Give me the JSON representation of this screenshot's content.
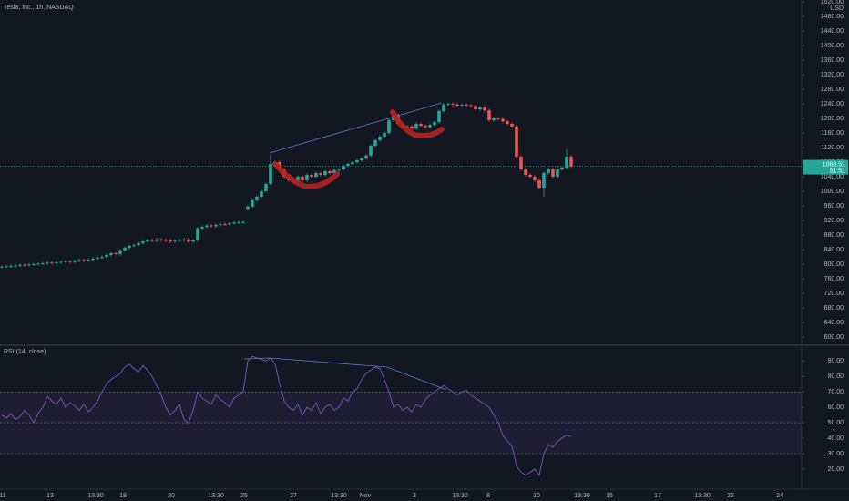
{
  "chart_data": [
    {
      "type": "candlestick",
      "title": "Tesla, Inc., 1h, NASDAQ",
      "currency": "USD",
      "up_color": "#26a69a",
      "down_color": "#ef5350",
      "open": [
        792,
        793,
        794,
        795,
        796,
        798,
        797,
        799,
        800,
        801,
        802,
        804,
        803,
        805,
        806,
        808,
        806,
        809,
        811,
        810,
        812,
        815,
        818,
        820,
        825,
        830,
        828,
        838,
        845,
        850,
        852,
        858,
        862,
        866,
        864,
        868,
        866,
        865,
        862,
        864,
        866,
        868,
        862,
        865,
        898,
        902,
        906,
        904,
        908,
        910,
        909,
        912,
        914,
        915,
        952,
        958,
        975,
        985,
        1000,
        1020,
        1075,
        1080,
        1060,
        1040,
        1030,
        1025,
        1040,
        1030,
        1045,
        1040,
        1050,
        1045,
        1055,
        1050,
        1058,
        1060,
        1070,
        1075,
        1080,
        1085,
        1090,
        1098,
        1125,
        1140,
        1150,
        1160,
        1195,
        1210,
        1185,
        1175,
        1178,
        1172,
        1185,
        1180,
        1176,
        1182,
        1190,
        1220,
        1238,
        1240,
        1238,
        1235,
        1237,
        1236,
        1234,
        1225,
        1230,
        1222,
        1195,
        1200,
        1198,
        1192,
        1185,
        1178,
        1095,
        1060,
        1045,
        1040,
        1030,
        1010,
        1050,
        1060,
        1040,
        1060,
        1065,
        1095
      ],
      "high": [
        797,
        798,
        799,
        800,
        802,
        802,
        803,
        804,
        805,
        806,
        808,
        808,
        809,
        810,
        812,
        812,
        813,
        815,
        815,
        816,
        819,
        822,
        824,
        829,
        834,
        834,
        842,
        849,
        854,
        856,
        862,
        866,
        870,
        870,
        872,
        872,
        870,
        869,
        868,
        870,
        872,
        872,
        869,
        902,
        906,
        910,
        910,
        912,
        914,
        914,
        916,
        918,
        919,
        919,
        962,
        979,
        989,
        1004,
        1024,
        1100,
        1084,
        1084,
        1064,
        1044,
        1034,
        1044,
        1044,
        1049,
        1049,
        1054,
        1054,
        1059,
        1059,
        1062,
        1064,
        1074,
        1079,
        1084,
        1089,
        1094,
        1102,
        1129,
        1144,
        1154,
        1164,
        1199,
        1214,
        1214,
        1189,
        1182,
        1182,
        1189,
        1189,
        1184,
        1186,
        1194,
        1224,
        1242,
        1244,
        1244,
        1242,
        1241,
        1241,
        1240,
        1238,
        1234,
        1234,
        1226,
        1204,
        1204,
        1202,
        1196,
        1189,
        1182,
        1099,
        1064,
        1049,
        1044,
        1034,
        1054,
        1064,
        1064,
        1064,
        1069,
        1115,
        1099
      ],
      "low": [
        788,
        789,
        790,
        791,
        792,
        793,
        793,
        795,
        796,
        797,
        798,
        799,
        799,
        801,
        802,
        802,
        802,
        805,
        806,
        806,
        808,
        811,
        814,
        816,
        821,
        824,
        824,
        834,
        841,
        846,
        848,
        854,
        858,
        860,
        860,
        862,
        861,
        858,
        858,
        860,
        862,
        858,
        858,
        861,
        894,
        898,
        900,
        900,
        904,
        905,
        905,
        908,
        910,
        911,
        948,
        954,
        971,
        981,
        996,
        1016,
        1071,
        1056,
        1036,
        1026,
        1021,
        1021,
        1026,
        1026,
        1036,
        1036,
        1041,
        1041,
        1046,
        1046,
        1054,
        1056,
        1066,
        1071,
        1076,
        1081,
        1086,
        1094,
        1121,
        1136,
        1146,
        1156,
        1191,
        1181,
        1171,
        1171,
        1168,
        1168,
        1176,
        1172,
        1172,
        1178,
        1186,
        1216,
        1234,
        1234,
        1231,
        1231,
        1232,
        1230,
        1221,
        1221,
        1218,
        1191,
        1191,
        1194,
        1188,
        1181,
        1174,
        1091,
        1056,
        1041,
        1036,
        1026,
        1006,
        985,
        1046,
        1036,
        1036,
        1056,
        1061,
        1064
      ],
      "close": [
        793,
        794,
        795,
        796,
        798,
        797,
        799,
        800,
        801,
        802,
        804,
        803,
        805,
        806,
        808,
        806,
        809,
        811,
        810,
        812,
        815,
        818,
        820,
        825,
        830,
        828,
        838,
        845,
        850,
        852,
        858,
        862,
        866,
        864,
        868,
        866,
        865,
        862,
        864,
        866,
        868,
        862,
        865,
        898,
        902,
        906,
        904,
        908,
        910,
        909,
        912,
        914,
        915,
        915,
        958,
        975,
        985,
        1000,
        1020,
        1075,
        1080,
        1060,
        1040,
        1030,
        1025,
        1040,
        1030,
        1045,
        1040,
        1050,
        1045,
        1055,
        1050,
        1058,
        1060,
        1070,
        1075,
        1080,
        1085,
        1090,
        1098,
        1125,
        1140,
        1150,
        1160,
        1195,
        1210,
        1185,
        1175,
        1178,
        1172,
        1185,
        1180,
        1176,
        1182,
        1190,
        1220,
        1238,
        1240,
        1238,
        1235,
        1237,
        1236,
        1234,
        1225,
        1230,
        1222,
        1195,
        1200,
        1198,
        1192,
        1185,
        1178,
        1095,
        1060,
        1045,
        1040,
        1030,
        1010,
        1050,
        1060,
        1040,
        1060,
        1065,
        1095,
        1068.51
      ],
      "last_price": 1068.51,
      "countdown": "51:51",
      "xlim": [
        0,
        176
      ],
      "ylim": [
        580,
        1525
      ],
      "yticks": [
        {
          "value": 600,
          "label": "600.00"
        },
        {
          "value": 640,
          "label": "640.00"
        },
        {
          "value": 680,
          "label": "680.00"
        },
        {
          "value": 720,
          "label": "720.00"
        },
        {
          "value": 760,
          "label": "760.00"
        },
        {
          "value": 800,
          "label": "800.00"
        },
        {
          "value": 840,
          "label": "840.00"
        },
        {
          "value": 880,
          "label": "880.00"
        },
        {
          "value": 920,
          "label": "920.00"
        },
        {
          "value": 960,
          "label": "960.00"
        },
        {
          "value": 1000,
          "label": "1000.00"
        },
        {
          "value": 1040,
          "label": "1040.00"
        },
        {
          "value": 1080,
          "label": "1080.00"
        },
        {
          "value": 1120,
          "label": "1120.00"
        },
        {
          "value": 1160,
          "label": "1160.00"
        },
        {
          "value": 1200,
          "label": "1200.00"
        },
        {
          "value": 1240,
          "label": "1240.00"
        },
        {
          "value": 1280,
          "label": "1280.00"
        },
        {
          "value": 1320,
          "label": "1320.00"
        },
        {
          "value": 1360,
          "label": "1360.00"
        },
        {
          "value": 1400,
          "label": "1400.00"
        },
        {
          "value": 1440,
          "label": "1440.00"
        },
        {
          "value": 1480,
          "label": "1480.00"
        },
        {
          "value": 1520,
          "label": "1520.00"
        }
      ],
      "xticks": [
        {
          "value": 0.6,
          "label": "11"
        },
        {
          "value": 11,
          "label": "13"
        },
        {
          "value": 21,
          "label": "13:30"
        },
        {
          "value": 27,
          "label": "18"
        },
        {
          "value": 37.6,
          "label": "20"
        },
        {
          "value": 47.4,
          "label": "13:30"
        },
        {
          "value": 53.6,
          "label": "25"
        },
        {
          "value": 64.4,
          "label": "27"
        },
        {
          "value": 74.4,
          "label": "13:30"
        },
        {
          "value": 80.2,
          "label": "Nov"
        },
        {
          "value": 91,
          "label": "3"
        },
        {
          "value": 101,
          "label": "13:30"
        },
        {
          "value": 107.2,
          "label": "8"
        },
        {
          "value": 117.8,
          "label": "10"
        },
        {
          "value": 127.8,
          "label": "13:30"
        },
        {
          "value": 133.8,
          "label": "15"
        },
        {
          "value": 144.4,
          "label": "17"
        },
        {
          "value": 154.2,
          "label": "13:30"
        },
        {
          "value": 160.4,
          "label": "22"
        },
        {
          "value": 171.2,
          "label": "24"
        }
      ]
    },
    {
      "type": "line",
      "title": "RSI (14, close)",
      "color": "#7e57c2",
      "values": [
        55,
        53,
        56,
        52,
        54,
        58,
        55,
        50,
        56,
        60,
        67,
        64,
        62,
        66,
        60,
        63,
        61,
        58,
        62,
        57,
        60,
        64,
        70,
        75,
        78,
        80,
        82,
        86,
        88,
        85,
        83,
        87,
        84,
        80,
        74,
        68,
        60,
        55,
        58,
        62,
        52,
        50,
        58,
        70,
        66,
        64,
        62,
        68,
        65,
        63,
        60,
        66,
        68,
        70,
        90,
        93,
        92,
        91,
        90,
        92,
        88,
        75,
        64,
        60,
        58,
        62,
        55,
        60,
        58,
        63,
        56,
        60,
        62,
        58,
        60,
        66,
        64,
        70,
        72,
        78,
        82,
        84,
        86,
        85,
        78,
        70,
        60,
        62,
        58,
        60,
        57,
        62,
        60,
        65,
        68,
        70,
        72,
        74,
        72,
        70,
        68,
        70,
        71,
        68,
        66,
        64,
        62,
        60,
        55,
        50,
        42,
        38,
        35,
        22,
        18,
        16,
        18,
        20,
        16,
        30,
        36,
        34,
        38,
        40,
        42,
        41
      ],
      "band": [
        30,
        70
      ],
      "levels": [
        70,
        50,
        30
      ],
      "xlim": [
        0,
        176
      ],
      "ylim": [
        7,
        99
      ],
      "yticks": [
        {
          "value": 20,
          "label": "20.00"
        },
        {
          "value": 30,
          "label": "30.00"
        },
        {
          "value": 40,
          "label": "40.00"
        },
        {
          "value": 50,
          "label": "50.00"
        },
        {
          "value": 60,
          "label": "60.00"
        },
        {
          "value": 70,
          "label": "70.00"
        },
        {
          "value": 80,
          "label": "80.00"
        },
        {
          "value": 90,
          "label": "90.00"
        }
      ]
    }
  ]
}
